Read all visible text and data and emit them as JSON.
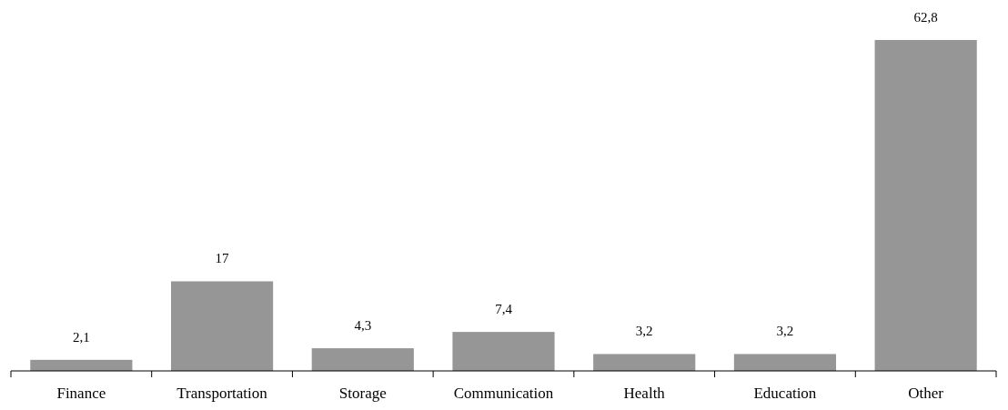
{
  "chart_data": {
    "type": "bar",
    "categories": [
      "Finance",
      "Transportation",
      "Storage",
      "Communication",
      "Health",
      "Education",
      "Other"
    ],
    "values": [
      2.1,
      17,
      4.3,
      7.4,
      3.2,
      3.2,
      62.8
    ],
    "value_labels": [
      "2,1",
      "17",
      "4,3",
      "7,4",
      "3,2",
      "3,2",
      "62,8"
    ],
    "color": "#969696"
  }
}
